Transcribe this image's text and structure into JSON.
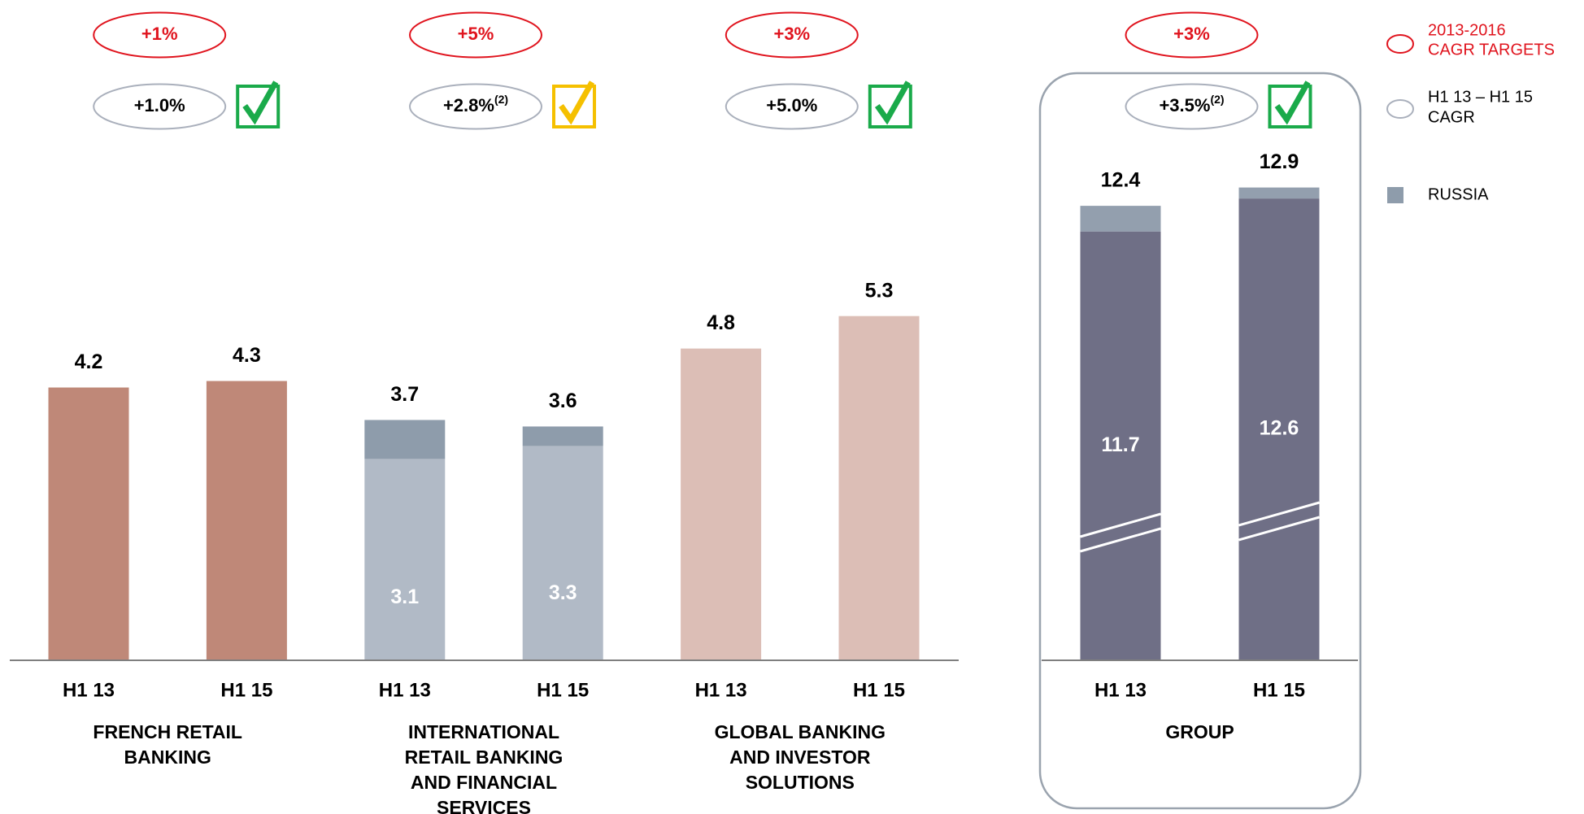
{
  "chart_data": [
    {
      "type": "bar",
      "stacked": true,
      "ylim": [
        0,
        7.9
      ],
      "categories": [
        "H1 13",
        "H1 15",
        "H1 13",
        "H1 15",
        "H1 13",
        "H1 15"
      ],
      "totals": [
        4.2,
        4.3,
        3.7,
        3.6,
        4.8,
        5.3
      ],
      "series": [
        {
          "colors": [
            "#bf8878",
            "#bf8878",
            "#b1bac6",
            "#b1bac6",
            "#dcbeb6",
            "#dcbeb6"
          ],
          "values": [
            4.2,
            4.3,
            3.1,
            3.3,
            4.8,
            5.3
          ],
          "show_labels": [
            false,
            false,
            true,
            true,
            false,
            false
          ]
        },
        {
          "name": "RUSSIA",
          "color": "#8e9cab",
          "values": [
            null,
            null,
            0.6,
            0.3,
            null,
            null
          ]
        }
      ],
      "groups": [
        {
          "name_lines": [
            "FRENCH RETAIL",
            "BANKING"
          ],
          "target": "+1%",
          "cagr": "+1.0%",
          "check_color": "#1aaa4a"
        },
        {
          "name_lines": [
            "INTERNATIONAL",
            "RETAIL BANKING",
            "AND FINANCIAL",
            "SERVICES"
          ],
          "target": "+5%",
          "cagr": "+2.8%",
          "cagr_note": "(2)",
          "check_color": "#f5c000"
        },
        {
          "name_lines": [
            "GLOBAL BANKING",
            "AND INVESTOR",
            "SOLUTIONS"
          ],
          "target": "+3%",
          "cagr": "+5.0%",
          "check_color": "#1aaa4a"
        }
      ],
      "legend_target": [
        "2013-2016",
        "CAGR TARGETS"
      ],
      "legend_cagr": [
        "H1 13 – H1 15",
        "CAGR"
      ],
      "target_color": "#e0141e"
    },
    {
      "type": "bar",
      "stacked": true,
      "ylim": [
        0,
        14
      ],
      "axis_break": true,
      "categories": [
        "H1 13",
        "H1 15"
      ],
      "totals": [
        12.4,
        12.9
      ],
      "series": [
        {
          "colors": [
            "#6f6f86",
            "#6f6f86"
          ],
          "values": [
            11.7,
            12.6
          ],
          "show_labels": [
            true,
            true
          ]
        },
        {
          "color": "#939fae",
          "values": [
            0.7,
            0.3
          ]
        }
      ],
      "groups": [
        {
          "name_lines": [
            "GROUP"
          ],
          "target": "+3%",
          "cagr": "+3.5%",
          "cagr_note": "(2)",
          "check_color": "#1aaa4a"
        }
      ],
      "target_color": "#e0141e"
    }
  ]
}
